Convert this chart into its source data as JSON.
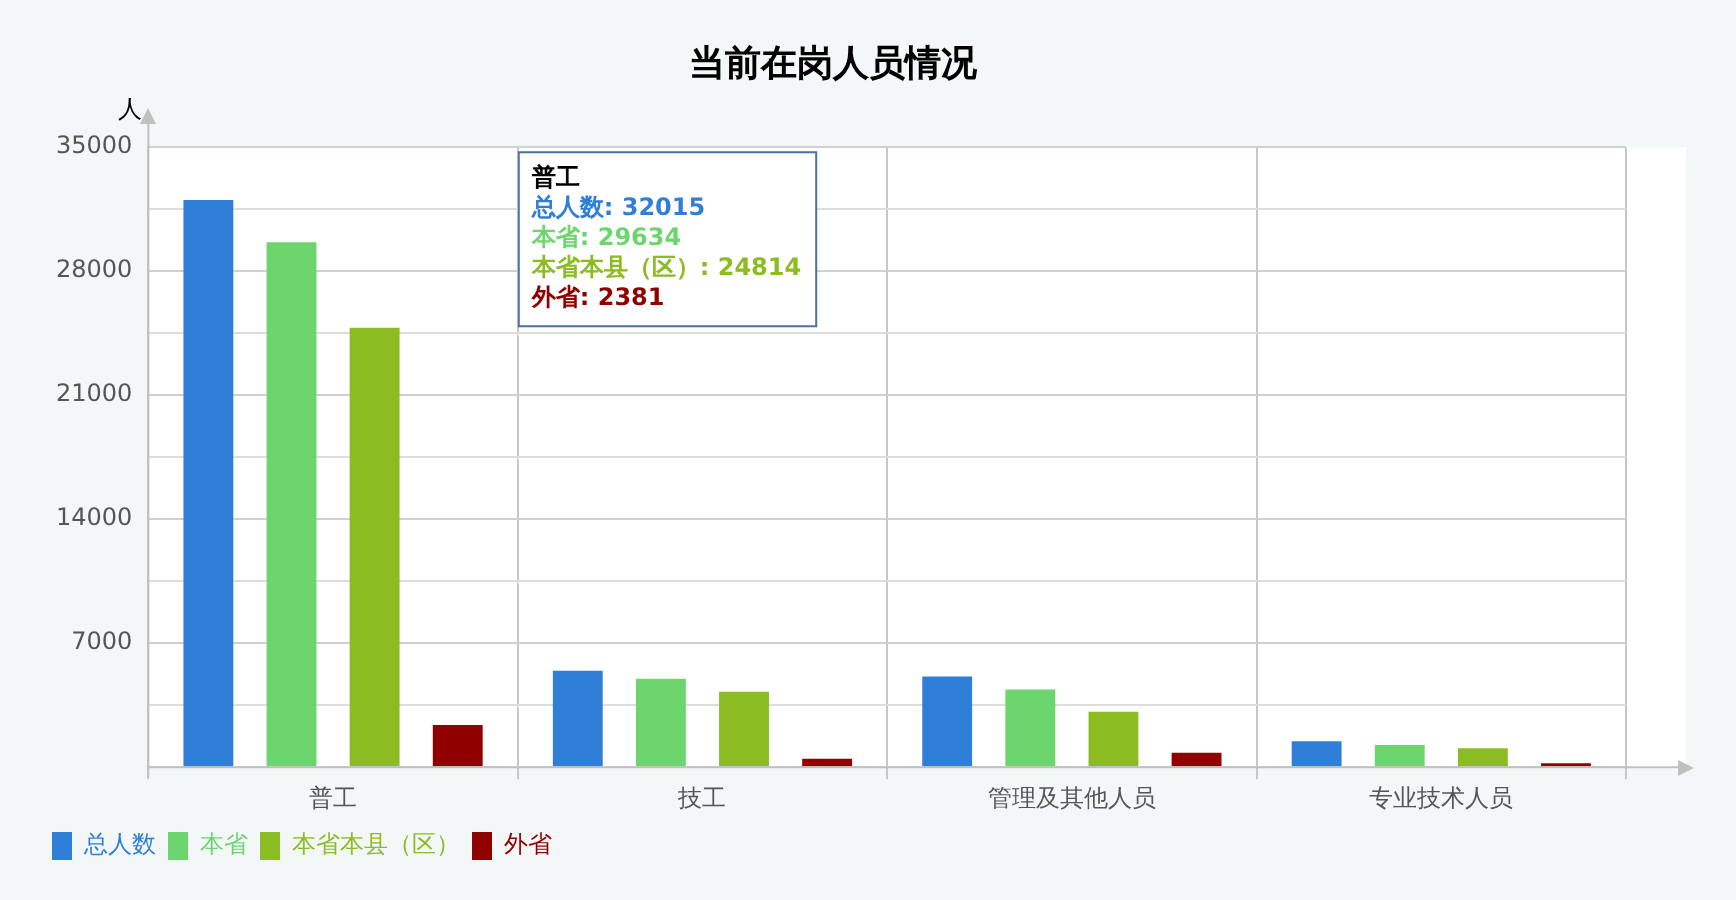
{
  "chart_data": {
    "type": "bar",
    "title": "当前在岗人员情况",
    "ylabel": "人",
    "categories": [
      "普工",
      "技工",
      "管理及其他人员",
      "专业技术人员"
    ],
    "series": [
      {
        "name": "总人数",
        "color": "#2f7ed8",
        "values": [
          32015,
          5440,
          5120,
          1470
        ]
      },
      {
        "name": "本省",
        "color": "#6dd56d",
        "values": [
          29634,
          5000,
          4380,
          1250
        ]
      },
      {
        "name": "本省本县（区）",
        "color": "#8bbc21",
        "values": [
          24814,
          4260,
          3130,
          1070
        ]
      },
      {
        "name": "外省",
        "color": "#910000",
        "values": [
          2381,
          480,
          810,
          220
        ]
      }
    ],
    "ylim": [
      0,
      35000
    ],
    "yticks": [
      {
        "value": 0,
        "label": null
      },
      {
        "value": 3500,
        "label": null
      },
      7000,
      {
        "value": 10500,
        "label": null
      },
      14000,
      {
        "value": 17500,
        "label": null
      },
      21000,
      {
        "value": 24500,
        "label": null
      },
      28000,
      {
        "value": 31500,
        "label": null
      },
      35000
    ],
    "grid": true,
    "legend": "bottom left",
    "annotations": [
      "普工",
      "总人数: 32015",
      "本省: 29634",
      "本省本县（区）: 24814",
      "外省: 2381"
    ]
  }
}
